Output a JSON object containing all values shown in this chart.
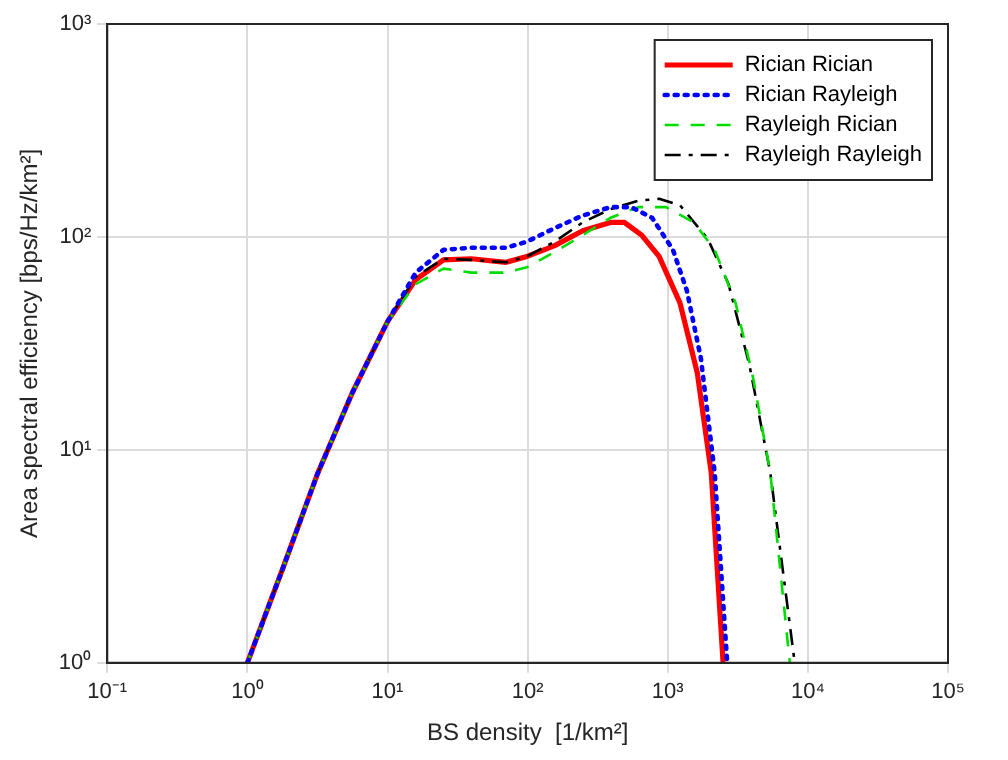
{
  "chart_data": {
    "type": "line",
    "xlabel": "BS density  [1/km²]",
    "ylabel": "Area spectral efficiency [bps/Hz/km²]",
    "log": "xy",
    "xlim": [
      0.1,
      100000
    ],
    "ylim": [
      1,
      1000
    ],
    "xticks": [
      {
        "value": 0.1,
        "label": "10⁻¹"
      },
      {
        "value": 1,
        "label": "10⁰"
      },
      {
        "value": 10,
        "label": "10¹"
      },
      {
        "value": 100,
        "label": "10²"
      },
      {
        "value": 1000,
        "label": "10³"
      },
      {
        "value": 10000,
        "label": "10⁴"
      },
      {
        "value": 100000,
        "label": "10⁵"
      }
    ],
    "yticks": [
      {
        "value": 1,
        "label": "10⁰"
      },
      {
        "value": 10,
        "label": "10¹"
      },
      {
        "value": 100,
        "label": "10²"
      },
      {
        "value": 1000,
        "label": "10³"
      }
    ],
    "grid": true,
    "legend": "top right",
    "marker": "none",
    "series": [
      {
        "name": "Rician Rician",
        "color": "#ff0000",
        "line_style": "solid",
        "x": [
          1,
          1.78,
          3.16,
          5.62,
          10,
          15.9,
          25.1,
          39.6,
          70.2,
          98.9,
          156,
          247,
          390,
          490,
          651,
          867,
          1222,
          1625,
          2044,
          2483
        ],
        "values": [
          1,
          2.75,
          7.7,
          18.6,
          40,
          63,
          78,
          79,
          76,
          81,
          91,
          107,
          117,
          117,
          102,
          81,
          49,
          23,
          7.8,
          1
        ]
      },
      {
        "name": "Rician Rayleigh",
        "color": "#0000ff",
        "line_style": "dotted",
        "x": [
          1,
          1.78,
          3.16,
          5.62,
          10,
          15.9,
          25.1,
          39.6,
          70.2,
          98.9,
          156,
          247,
          390,
          549,
          773,
          1089,
          1368,
          1722,
          2162,
          2655
        ],
        "values": [
          1,
          2.75,
          7.7,
          18.6,
          40,
          68,
          87,
          89,
          89,
          95,
          110,
          126,
          138,
          138,
          123,
          87,
          56,
          27,
          7.8,
          1
        ]
      },
      {
        "name": "Rayleigh Rician",
        "color": "#00dd00",
        "line_style": "dashed",
        "x": [
          1,
          1.78,
          3.16,
          5.62,
          10,
          15.9,
          25.1,
          39.6,
          70.2,
          98.9,
          156,
          247,
          390,
          615,
          972,
          1535,
          2162,
          3048,
          4055,
          5395,
          7430
        ],
        "values": [
          1,
          2.75,
          7.7,
          18.6,
          40,
          60,
          71,
          68,
          68,
          72,
          85,
          102,
          123,
          138,
          138,
          117,
          87,
          49,
          22,
          7.8,
          1
        ]
      },
      {
        "name": "Rayleigh Rayleigh",
        "color": "#000000",
        "line_style": "dashdot",
        "x": [
          1,
          1.78,
          3.16,
          5.62,
          10,
          15.9,
          25.1,
          39.6,
          70.2,
          98.9,
          156,
          247,
          390,
          615,
          867,
          1222,
          1929,
          2717,
          3828,
          5395,
          8054
        ],
        "values": [
          1,
          2.75,
          7.7,
          18.6,
          40,
          65,
          79,
          78,
          76,
          81,
          95,
          117,
          135,
          148,
          151,
          141,
          98,
          60,
          25,
          7.8,
          1
        ]
      }
    ]
  }
}
